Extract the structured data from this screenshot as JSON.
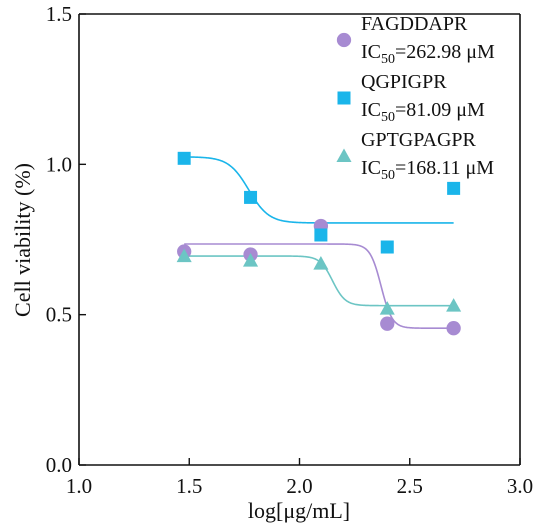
{
  "chart_data": {
    "type": "scatter",
    "title": "",
    "xlabel": "log[μg/mL]",
    "ylabel": "Cell viability (%)",
    "xlim": [
      1.0,
      3.0
    ],
    "ylim": [
      0.0,
      1.5
    ],
    "x_ticks": [
      "1.0",
      "1.5",
      "2.0",
      "2.5",
      "3.0"
    ],
    "y_ticks": [
      "0.0",
      "0.5",
      "1.0",
      "1.5"
    ],
    "grid": false,
    "legend_position": "top-right",
    "series": [
      {
        "name": "FAGDDAPR",
        "ic50_prefix": "IC",
        "ic50_sub": "50",
        "ic50_value": "=262.98 μM",
        "marker": "circle",
        "color": "#a78bd2",
        "x": [
          1.477,
          1.778,
          2.097,
          2.398,
          2.699
        ],
        "y": [
          0.71,
          0.7,
          0.795,
          0.47,
          0.455
        ],
        "fit": {
          "top": 0.735,
          "bottom": 0.455,
          "logIC50": 2.37,
          "hill": 40
        }
      },
      {
        "name": "QGPIGPR",
        "ic50_prefix": "IC",
        "ic50_sub": "50",
        "ic50_value": "=81.09 μM",
        "marker": "square",
        "color": "#1ab5ea",
        "x": [
          1.477,
          1.778,
          2.097,
          2.398,
          2.699
        ],
        "y": [
          1.02,
          0.89,
          0.765,
          0.725,
          0.92
        ],
        "fit": {
          "top": 1.025,
          "bottom": 0.805,
          "logIC50": 1.77,
          "hill": 22
        }
      },
      {
        "name": "GPTGPAGPR",
        "ic50_prefix": "IC",
        "ic50_sub": "50",
        "ic50_value": "=168.11 μM",
        "marker": "triangle",
        "color": "#6cc5c4",
        "x": [
          1.477,
          1.778,
          2.097,
          2.398,
          2.699
        ],
        "y": [
          0.695,
          0.68,
          0.67,
          0.52,
          0.53
        ],
        "fit": {
          "top": 0.695,
          "bottom": 0.53,
          "logIC50": 2.15,
          "hill": 35
        }
      }
    ]
  }
}
